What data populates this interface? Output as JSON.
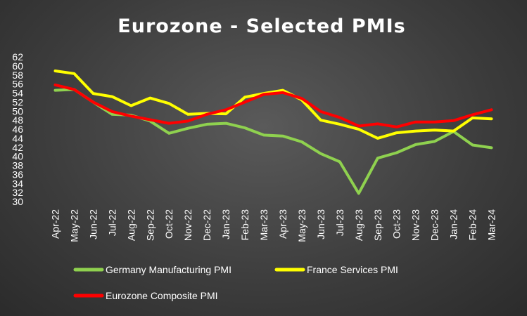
{
  "chart_data": {
    "type": "line",
    "title": "Eurozone - Selected PMIs",
    "xlabel": "",
    "ylabel": "",
    "ylim": [
      30,
      62
    ],
    "yticks": [
      30,
      32,
      34,
      36,
      38,
      40,
      42,
      44,
      46,
      48,
      50,
      52,
      54,
      56,
      58,
      60,
      62
    ],
    "grid": false,
    "legend_position": "bottom",
    "categories": [
      "Apr-22",
      "May-22",
      "Jun-22",
      "Jul-22",
      "Aug-22",
      "Sep-22",
      "Oct-22",
      "Nov-22",
      "Dec-22",
      "Jan-23",
      "Feb-23",
      "Mar-23",
      "Apr-23",
      "May-23",
      "Jun-23",
      "Jul-23",
      "Aug-23",
      "Sep-23",
      "Oct-23",
      "Nov-23",
      "Dec-23",
      "Jan-24",
      "Feb-24",
      "Mar-24"
    ],
    "series": [
      {
        "name": "Germany Manufacturing PMI",
        "color": "#8fd14f",
        "values": [
          54.6,
          54.8,
          52.0,
          49.3,
          49.1,
          47.8,
          45.1,
          46.2,
          47.1,
          47.3,
          46.3,
          44.7,
          44.5,
          43.2,
          40.6,
          38.8,
          31.8,
          39.6,
          40.8,
          42.6,
          43.3,
          45.5,
          42.5,
          41.9
        ]
      },
      {
        "name": "France Services PMI",
        "color": "#ffff00",
        "values": [
          58.9,
          58.3,
          53.9,
          53.2,
          51.2,
          52.9,
          51.7,
          49.3,
          49.5,
          49.4,
          53.1,
          53.9,
          54.6,
          52.5,
          48.0,
          47.1,
          46.0,
          44.0,
          45.2,
          45.6,
          45.8,
          45.6,
          48.5,
          48.3
        ]
      },
      {
        "name": "Eurozone Composite PMI",
        "color": "#ff0000",
        "values": [
          55.8,
          54.8,
          52.0,
          49.9,
          48.9,
          48.1,
          47.3,
          47.8,
          49.3,
          50.3,
          52.0,
          53.7,
          54.1,
          52.8,
          49.9,
          48.6,
          46.7,
          47.2,
          46.5,
          47.6,
          47.6,
          47.9,
          49.2,
          50.3
        ]
      }
    ]
  }
}
